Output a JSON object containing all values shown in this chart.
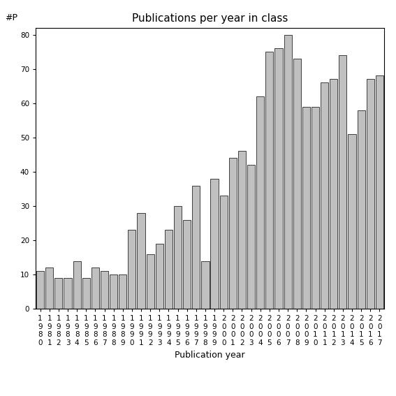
{
  "title": "Publications per year in class",
  "xlabel": "Publication year",
  "ylabel": "#P",
  "years": [
    1980,
    1981,
    1982,
    1983,
    1984,
    1985,
    1986,
    1987,
    1988,
    1989,
    1990,
    1991,
    1992,
    1993,
    1994,
    1995,
    1996,
    1997,
    1998,
    1999,
    2000,
    2001,
    2002,
    2003,
    2004,
    2005,
    2006,
    2007,
    2008,
    2009,
    2010,
    2011,
    2012,
    2013,
    2014,
    2015,
    2016,
    2017
  ],
  "values": [
    11,
    12,
    9,
    9,
    14,
    9,
    12,
    11,
    10,
    10,
    23,
    28,
    16,
    19,
    23,
    30,
    26,
    36,
    14,
    38,
    33,
    44,
    46,
    42,
    62,
    75,
    76,
    80,
    73,
    59,
    59,
    66,
    67,
    74,
    51,
    58,
    67,
    68
  ],
  "bar_color": "#c0c0c0",
  "bar_edge_color": "#000000",
  "bar_edge_width": 0.5,
  "ylim": [
    0,
    82
  ],
  "yticks": [
    0,
    10,
    20,
    30,
    40,
    50,
    60,
    70,
    80
  ],
  "bg_color": "#ffffff",
  "title_fontsize": 11,
  "label_fontsize": 9,
  "tick_fontsize": 7.5
}
